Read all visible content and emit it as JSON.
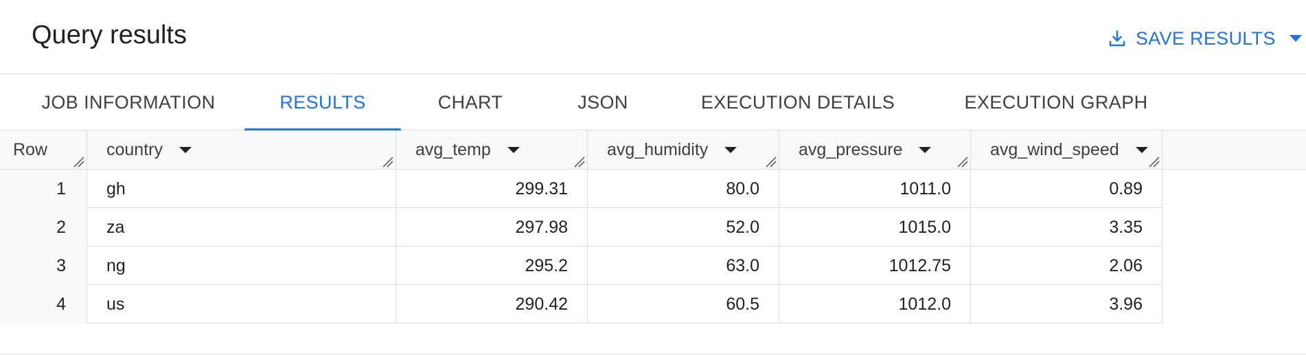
{
  "header": {
    "title": "Query results",
    "save_label": "SAVE RESULTS",
    "save_icon": "download-icon",
    "dropdown_icon": "caret-down-icon"
  },
  "tabs": [
    {
      "label": "JOB INFORMATION",
      "active": false
    },
    {
      "label": "RESULTS",
      "active": true
    },
    {
      "label": "CHART",
      "active": false
    },
    {
      "label": "JSON",
      "active": false
    },
    {
      "label": "EXECUTION DETAILS",
      "active": false
    },
    {
      "label": "EXECUTION GRAPH",
      "active": false
    }
  ],
  "table": {
    "columns": [
      "Row",
      "country",
      "avg_temp",
      "avg_humidity",
      "avg_pressure",
      "avg_wind_speed"
    ],
    "rows": [
      [
        "1",
        "gh",
        "299.31",
        "80.0",
        "1011.0",
        "0.89"
      ],
      [
        "2",
        "za",
        "297.98",
        "52.0",
        "1015.0",
        "3.35"
      ],
      [
        "3",
        "ng",
        "295.2",
        "63.0",
        "1012.75",
        "2.06"
      ],
      [
        "4",
        "us",
        "290.42",
        "60.5",
        "1012.0",
        "3.96"
      ]
    ]
  },
  "colors": {
    "accent": "#1a73e8",
    "border": "#dadce0",
    "header_bg": "#f8f9fa",
    "text": "#202124"
  }
}
